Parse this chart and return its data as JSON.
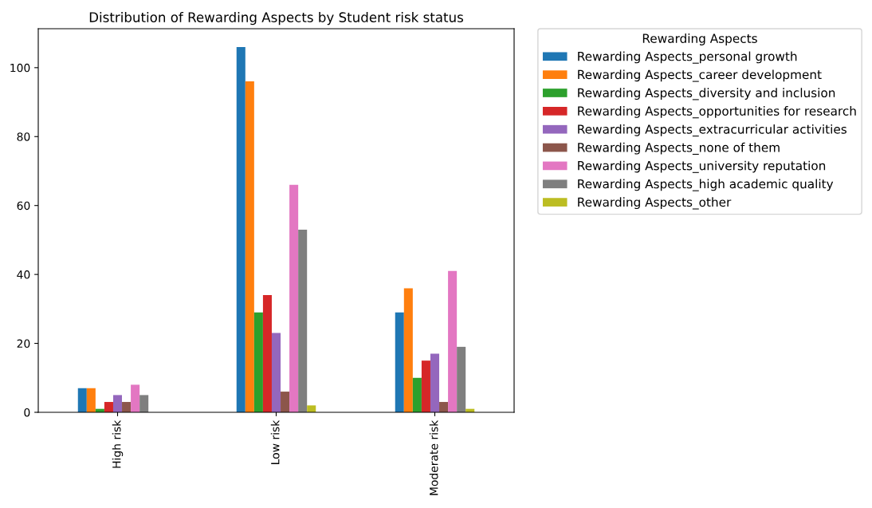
{
  "chart_data": {
    "type": "bar",
    "title": "Distribution of Rewarding Aspects by Student risk status",
    "legend_title": "Rewarding Aspects",
    "legend": "outside top right",
    "categories": [
      "High risk",
      "Low risk",
      "Moderate risk"
    ],
    "ylim": [
      0,
      111.3
    ],
    "yticks": [
      0,
      20,
      40,
      60,
      80,
      100
    ],
    "grid": false,
    "series": [
      {
        "name": "Rewarding Aspects_personal growth",
        "color": "#1f77b4",
        "values": [
          7,
          106,
          29
        ]
      },
      {
        "name": "Rewarding Aspects_career development",
        "color": "#ff7f0e",
        "values": [
          7,
          96,
          36
        ]
      },
      {
        "name": "Rewarding Aspects_diversity and inclusion",
        "color": "#2ca02c",
        "values": [
          1,
          29,
          10
        ]
      },
      {
        "name": "Rewarding Aspects_opportunities for research",
        "color": "#d62728",
        "values": [
          3,
          34,
          15
        ]
      },
      {
        "name": "Rewarding Aspects_extracurricular activities",
        "color": "#9467bd",
        "values": [
          5,
          23,
          17
        ]
      },
      {
        "name": "Rewarding Aspects_none of them",
        "color": "#8c564b",
        "values": [
          3,
          6,
          3
        ]
      },
      {
        "name": "Rewarding Aspects_university reputation",
        "color": "#e377c2",
        "values": [
          8,
          66,
          41
        ]
      },
      {
        "name": "Rewarding Aspects_high academic quality",
        "color": "#7f7f7f",
        "values": [
          5,
          53,
          19
        ]
      },
      {
        "name": "Rewarding Aspects_other",
        "color": "#bcbd22",
        "values": [
          0,
          2,
          1
        ]
      }
    ]
  }
}
